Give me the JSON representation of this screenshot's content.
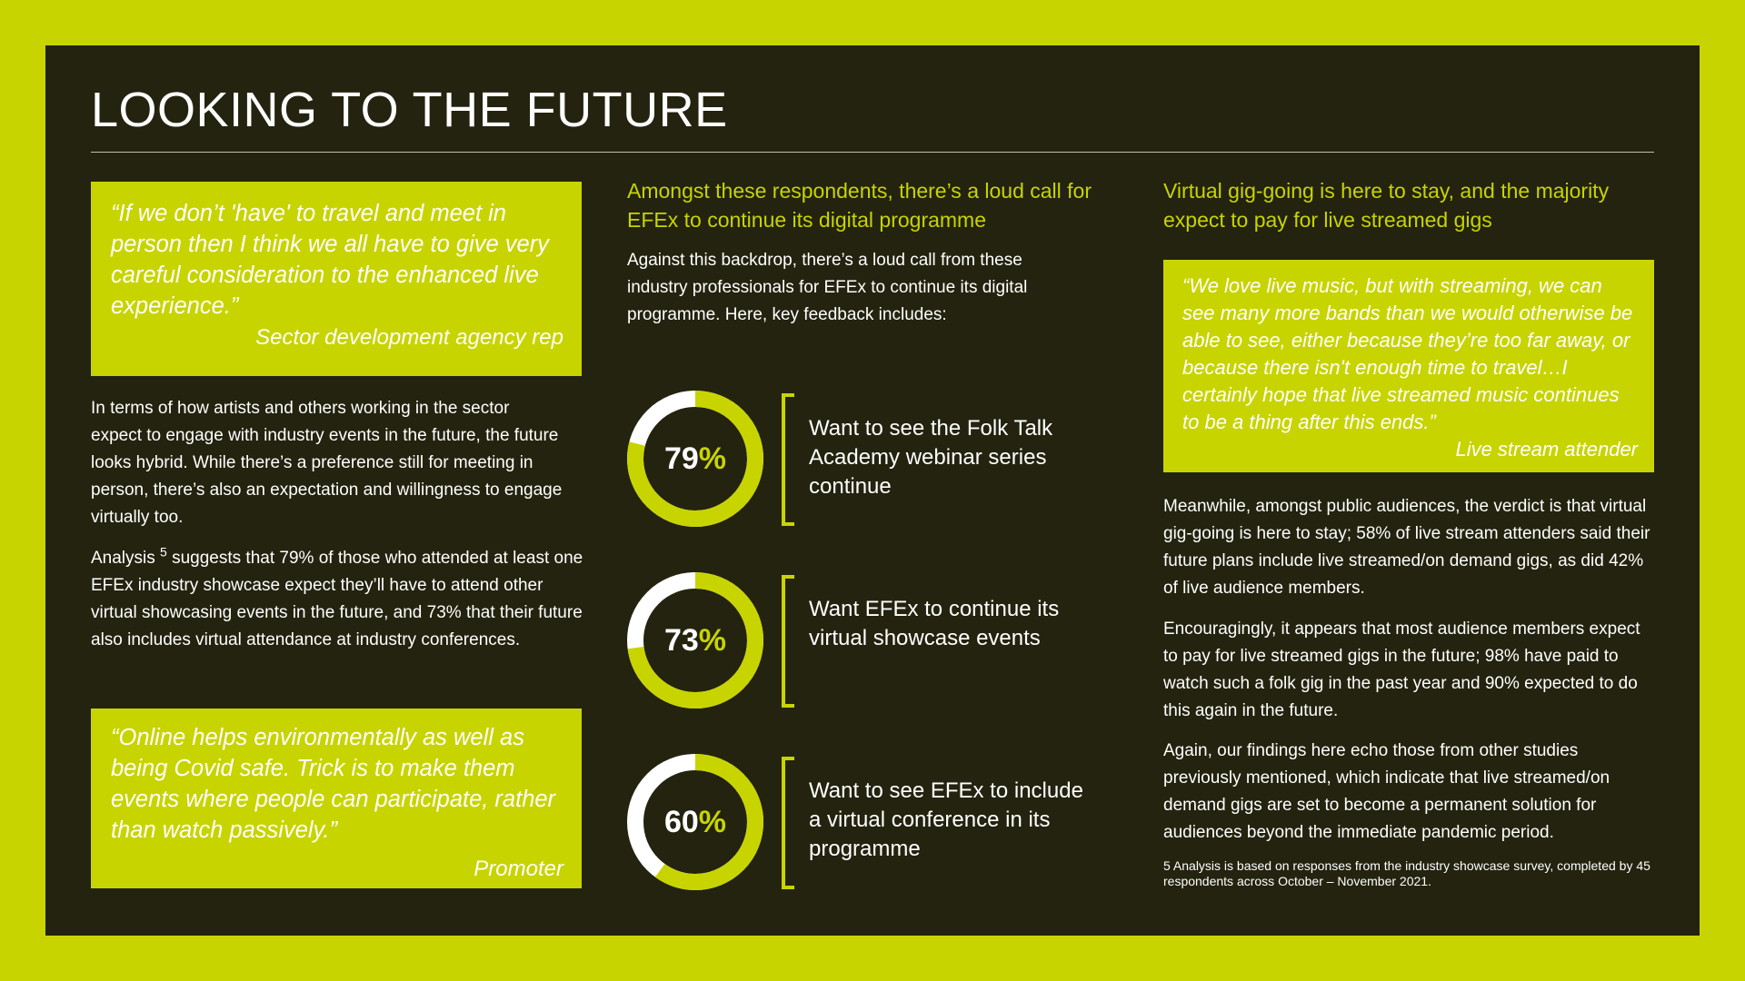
{
  "page": {
    "title": "LOOKING TO THE FUTURE",
    "colors": {
      "accent": "#c8d400",
      "panel": "#23230f",
      "text": "#ffffff",
      "donut_remainder": "#ffffff"
    }
  },
  "left": {
    "quote1": {
      "text": "“If we don’t 'have' to travel and meet in person then I think we all have to give very careful consideration to the enhanced live experience.”",
      "attribution": "Sector development agency rep"
    },
    "para1": "In terms of how artists and others working in the sector expect to engage with industry events in the future, the future looks hybrid. While there’s a preference still for meeting in person, there’s also an expectation and willingness to engage virtually too.",
    "para2_start": "Analysis",
    "para2_sup": "5",
    "para2_rest": " suggests that 79% of those who attended at least one EFEx industry showcase expect they’ll have to attend other virtual showcasing events in the future, and 73% that their future also includes virtual attendance at industry conferences.",
    "quote2": {
      "text": "“Online helps environmentally as well as being Covid safe. Trick is to make them events where people can participate, rather than watch passively.”",
      "attribution": "Promoter"
    }
  },
  "middle": {
    "heading": "Amongst these respondents, there’s a loud call for EFEx to continue its digital programme",
    "intro": "Against this backdrop, there’s a loud call from these industry professionals for EFEx to continue its digital programme. Here, key feedback includes:",
    "stats": [
      {
        "value": 79,
        "unit": "%",
        "label": "Want to see the Folk Talk Academy webinar series continue"
      },
      {
        "value": 73,
        "unit": "%",
        "label": "Want EFEx to continue its virtual showcase events"
      },
      {
        "value": 60,
        "unit": "%",
        "label": "Want to see EFEx to include a virtual conference in its programme"
      }
    ]
  },
  "right": {
    "heading": "Virtual gig-going is here to stay, and the majority expect to pay for live streamed gigs",
    "quote": {
      "text": "“We love live music, but with streaming, we can see many more bands than we would otherwise be able to see, either because they’re too far away, or because there isn't enough time to travel…I certainly hope that live streamed music continues to be a thing after this ends.”",
      "attribution": "Live stream attender"
    },
    "para1": "Meanwhile, amongst public audiences, the verdict is that virtual gig-going is here to stay; 58% of live stream attenders said their future plans include live streamed/on demand gigs, as did 42% of live audience members.",
    "para2": "Encouragingly, it appears that most audience members expect to pay for live streamed gigs in the future; 98% have paid to watch such a folk gig in the past year and 90% expected to do this again in the future.",
    "para3": "Again, our findings here echo those from other studies previously mentioned, which indicate that live streamed/on demand gigs are set to become a permanent solution for audiences beyond the immediate pandemic period.",
    "footnote": "5 Analysis is based on responses from the industry showcase survey, completed by 45 respondents across October – November 2021."
  }
}
